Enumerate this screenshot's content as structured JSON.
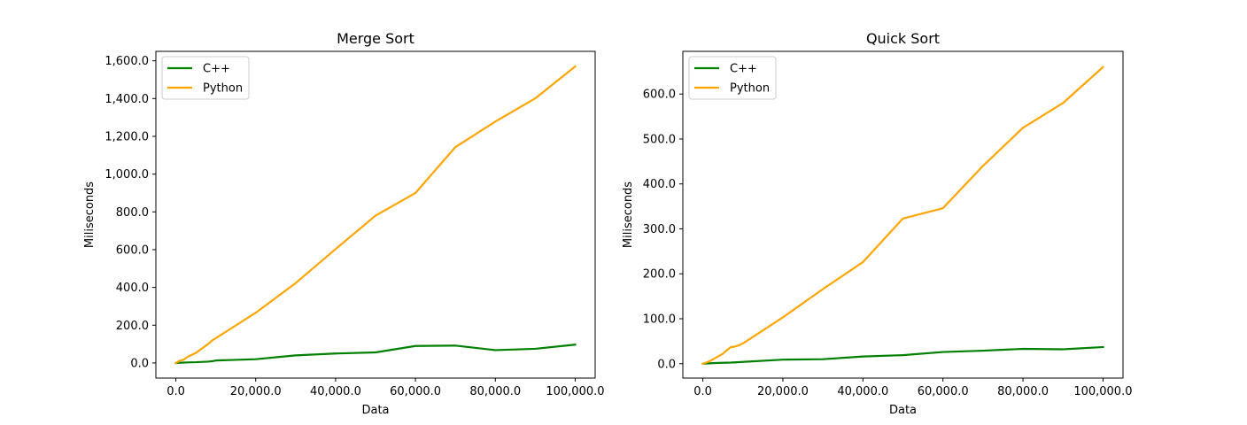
{
  "colors": {
    "series_cpp": "#008000",
    "series_python": "#ffa500",
    "axis": "#000000",
    "legend_border": "#cccccc"
  },
  "chart_data": [
    {
      "type": "line",
      "title": "Merge Sort",
      "xlabel": "Data",
      "ylabel": "Miliseconds",
      "xlim": [
        -5000,
        105000
      ],
      "ylim": [
        -80,
        1650
      ],
      "xticks": [
        0,
        20000,
        40000,
        60000,
        80000,
        100000
      ],
      "xtick_labels": [
        "0.0",
        "20,000.0",
        "40,000.0",
        "60,000.0",
        "80,000.0",
        "100,000.0"
      ],
      "yticks": [
        0,
        200,
        400,
        600,
        800,
        1000,
        1200,
        1400,
        1600
      ],
      "ytick_labels": [
        "0.0",
        "200.0",
        "400.0",
        "600.0",
        "800.0",
        "1,000.0",
        "1,200.0",
        "1,400.0",
        "1,600.0"
      ],
      "grid": false,
      "legend_position": "top-left",
      "series": [
        {
          "name": "C++",
          "color_key": "series_cpp",
          "x": [
            0,
            1000,
            2000,
            3000,
            5000,
            8000,
            9000,
            10000,
            20000,
            30000,
            40000,
            50000,
            60000,
            70000,
            80000,
            90000,
            100000
          ],
          "y": [
            0,
            1,
            2,
            3,
            4,
            7,
            9,
            13,
            20,
            40,
            50,
            56,
            90,
            92,
            68,
            75,
            97
          ]
        },
        {
          "name": "Python",
          "color_key": "series_python",
          "x": [
            0,
            1000,
            2000,
            3000,
            5000,
            8000,
            9000,
            10000,
            20000,
            30000,
            40000,
            50000,
            60000,
            70000,
            80000,
            90000,
            100000
          ],
          "y": [
            0,
            12,
            18,
            33,
            53,
            99,
            118,
            131,
            266,
            423,
            603,
            780,
            900,
            1143,
            1278,
            1401,
            1570
          ]
        }
      ]
    },
    {
      "type": "line",
      "title": "Quick Sort",
      "xlabel": "Data",
      "ylabel": "Miliseconds",
      "xlim": [
        -5000,
        105000
      ],
      "ylim": [
        -32,
        695
      ],
      "xticks": [
        0,
        20000,
        40000,
        60000,
        80000,
        100000
      ],
      "xtick_labels": [
        "0.0",
        "20,000.0",
        "40,000.0",
        "60,000.0",
        "80,000.0",
        "100,000.0"
      ],
      "yticks": [
        0,
        100,
        200,
        300,
        400,
        500,
        600
      ],
      "ytick_labels": [
        "0.0",
        "100.0",
        "200.0",
        "300.0",
        "400.0",
        "500.0",
        "600.0"
      ],
      "grid": false,
      "legend_position": "top-left",
      "series": [
        {
          "name": "C++",
          "color_key": "series_cpp",
          "x": [
            0,
            1000,
            2000,
            3000,
            5000,
            7000,
            8000,
            9000,
            10000,
            20000,
            30000,
            40000,
            50000,
            60000,
            70000,
            80000,
            90000,
            100000
          ],
          "y": [
            0,
            0.5,
            1,
            1.5,
            2,
            2.5,
            3,
            3.5,
            4,
            9,
            10,
            16,
            19,
            26,
            29,
            33,
            32,
            37
          ]
        },
        {
          "name": "Python",
          "color_key": "series_python",
          "x": [
            0,
            1000,
            2000,
            3000,
            5000,
            6000,
            7000,
            8000,
            9000,
            10000,
            20000,
            30000,
            40000,
            50000,
            60000,
            70000,
            80000,
            90000,
            100000
          ],
          "y": [
            0,
            3,
            7,
            12,
            22,
            30,
            37,
            38,
            41,
            45,
            103,
            166,
            226,
            323,
            346,
            440,
            525,
            580,
            660
          ]
        }
      ]
    }
  ]
}
